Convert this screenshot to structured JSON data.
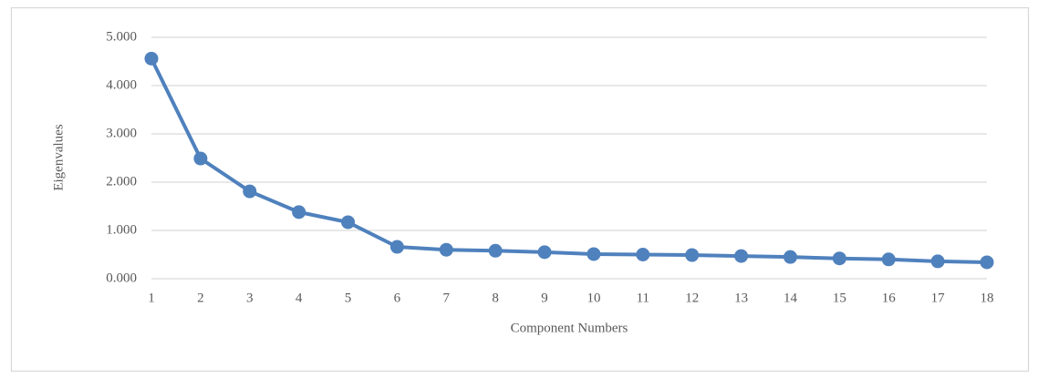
{
  "chart_data": {
    "type": "line",
    "x_label": "Component Numbers",
    "y_label": "Eigenvalues",
    "x": [
      1,
      2,
      3,
      4,
      5,
      6,
      7,
      8,
      9,
      10,
      11,
      12,
      13,
      14,
      15,
      16,
      17,
      18
    ],
    "xlim": [
      1,
      18
    ],
    "xticks": [
      1,
      2,
      3,
      4,
      5,
      6,
      7,
      8,
      9,
      10,
      11,
      12,
      13,
      14,
      15,
      16,
      17,
      18
    ],
    "ylim": [
      0,
      5
    ],
    "yticks": [
      {
        "value": 0,
        "label": "0.000"
      },
      {
        "value": 1,
        "label": "1.000"
      },
      {
        "value": 2,
        "label": "2.000"
      },
      {
        "value": 3,
        "label": "3.000"
      },
      {
        "value": 4,
        "label": "4.000"
      },
      {
        "value": 5,
        "label": "5.000"
      }
    ],
    "grid": true,
    "series": [
      {
        "color": "#4f81bd",
        "values": [
          4.56,
          2.49,
          1.81,
          1.38,
          1.17,
          0.66,
          0.6,
          0.58,
          0.55,
          0.51,
          0.5,
          0.49,
          0.47,
          0.45,
          0.42,
          0.4,
          0.36,
          0.34
        ]
      }
    ]
  }
}
